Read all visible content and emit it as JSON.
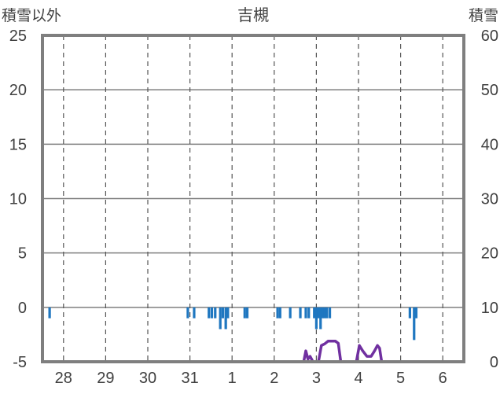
{
  "chart_data": {
    "type": "bar",
    "title": "吉槻",
    "left_axis": {
      "name": "積雪以外",
      "range": [
        -5,
        25
      ],
      "ticks": [
        25,
        20,
        15,
        10,
        5,
        0,
        -5
      ]
    },
    "right_axis": {
      "name": "積雪",
      "range": [
        0,
        60
      ],
      "ticks": [
        60,
        50,
        40,
        30,
        20,
        10,
        0
      ]
    },
    "x_axis": {
      "range": [
        27.5,
        37.5
      ],
      "ticks": [
        {
          "pos": 28,
          "label": "28"
        },
        {
          "pos": 29,
          "label": "29"
        },
        {
          "pos": 30,
          "label": "30"
        },
        {
          "pos": 31,
          "label": "31"
        },
        {
          "pos": 32,
          "label": "1"
        },
        {
          "pos": 33,
          "label": "2"
        },
        {
          "pos": 34,
          "label": "3"
        },
        {
          "pos": 35,
          "label": "4"
        },
        {
          "pos": 36,
          "label": "5"
        },
        {
          "pos": 37,
          "label": "6"
        }
      ]
    },
    "grid": true,
    "series": [
      {
        "kind": "bar",
        "axis": "left",
        "color": "#1f77c0",
        "bar_width": 0.04,
        "points": [
          {
            "x": 27.67,
            "y": -1.0
          },
          {
            "x": 30.95,
            "y": -1.0
          },
          {
            "x": 31.1,
            "y": -1.0
          },
          {
            "x": 31.45,
            "y": -1.0
          },
          {
            "x": 31.52,
            "y": -1.0
          },
          {
            "x": 31.6,
            "y": -1.0
          },
          {
            "x": 31.72,
            "y": -2.0
          },
          {
            "x": 31.78,
            "y": -1.0
          },
          {
            "x": 31.85,
            "y": -2.0
          },
          {
            "x": 31.9,
            "y": -1.0
          },
          {
            "x": 32.3,
            "y": -1.0
          },
          {
            "x": 32.36,
            "y": -1.0
          },
          {
            "x": 33.08,
            "y": -1.0
          },
          {
            "x": 33.14,
            "y": -1.0
          },
          {
            "x": 33.38,
            "y": -1.0
          },
          {
            "x": 33.62,
            "y": -1.0
          },
          {
            "x": 33.75,
            "y": -1.0
          },
          {
            "x": 33.82,
            "y": -1.0
          },
          {
            "x": 33.95,
            "y": -1.0
          },
          {
            "x": 34.0,
            "y": -2.0
          },
          {
            "x": 34.05,
            "y": -1.0
          },
          {
            "x": 34.1,
            "y": -2.0
          },
          {
            "x": 34.15,
            "y": -1.0
          },
          {
            "x": 34.2,
            "y": -1.0
          },
          {
            "x": 34.25,
            "y": -1.0
          },
          {
            "x": 34.32,
            "y": -1.0
          },
          {
            "x": 36.22,
            "y": -1.0
          },
          {
            "x": 36.32,
            "y": -3.0
          },
          {
            "x": 36.37,
            "y": -1.0
          }
        ]
      },
      {
        "kind": "line",
        "axis": "right",
        "color": "#7030a0",
        "points": [
          {
            "x": 27.5,
            "y": 0
          },
          {
            "x": 33.7,
            "y": 0
          },
          {
            "x": 33.75,
            "y": 2
          },
          {
            "x": 33.8,
            "y": 0.5
          },
          {
            "x": 33.85,
            "y": 1
          },
          {
            "x": 33.92,
            "y": 0
          },
          {
            "x": 34.05,
            "y": 0
          },
          {
            "x": 34.12,
            "y": 3
          },
          {
            "x": 34.2,
            "y": 3.3
          },
          {
            "x": 34.28,
            "y": 3.8
          },
          {
            "x": 34.45,
            "y": 3.8
          },
          {
            "x": 34.52,
            "y": 3.4
          },
          {
            "x": 34.58,
            "y": 0
          },
          {
            "x": 34.95,
            "y": 0
          },
          {
            "x": 35.02,
            "y": 3
          },
          {
            "x": 35.1,
            "y": 2
          },
          {
            "x": 35.2,
            "y": 1
          },
          {
            "x": 35.3,
            "y": 1
          },
          {
            "x": 35.38,
            "y": 2
          },
          {
            "x": 35.45,
            "y": 3
          },
          {
            "x": 35.5,
            "y": 2.5
          },
          {
            "x": 35.55,
            "y": 0
          },
          {
            "x": 37.5,
            "y": 0
          }
        ]
      }
    ]
  }
}
